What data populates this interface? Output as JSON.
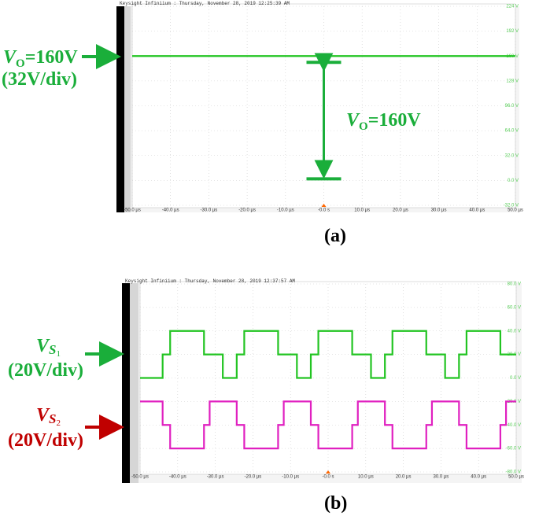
{
  "chart_data": [
    {
      "type": "line",
      "title": "Keysight Infiniium : Thursday, November 28, 2019 12:25:39 AM",
      "panel_label": "(a)",
      "annotations": {
        "left": {
          "v": "V",
          "sub": "O",
          "rest": "=160V",
          "div": "(32V/div)"
        },
        "inner": {
          "v": "V",
          "sub": "O",
          "rest": "=160V"
        }
      },
      "xlim": [
        -50,
        50
      ],
      "xticks": [
        {
          "value": -50,
          "label": "-50.0 µs"
        },
        {
          "value": -40,
          "label": "-40.0 µs"
        },
        {
          "value": -30,
          "label": "-30.0 µs"
        },
        {
          "value": -20,
          "label": "-20.0 µs"
        },
        {
          "value": -10,
          "label": "-10.0 µs"
        },
        {
          "value": 0,
          "label": "-0.0 s"
        },
        {
          "value": 10,
          "label": "10.0 µs"
        },
        {
          "value": 20,
          "label": "20.0 µs"
        },
        {
          "value": 30,
          "label": "30.0 µs"
        },
        {
          "value": 40,
          "label": "40.0 µs"
        },
        {
          "value": 50,
          "label": "50.0 µs"
        }
      ],
      "ylim": [
        -32,
        224
      ],
      "yticks": [
        {
          "value": 224,
          "label": "224 V"
        },
        {
          "value": 192,
          "label": "192 V"
        },
        {
          "value": 160,
          "label": "160 V"
        },
        {
          "value": 128,
          "label": "128 V"
        },
        {
          "value": 96,
          "label": "96.0 V"
        },
        {
          "value": 64,
          "label": "64.0 V"
        },
        {
          "value": 32,
          "label": "32.0 V"
        },
        {
          "value": 0,
          "label": "0.0 V"
        },
        {
          "value": -32,
          "label": "-32.0 V"
        }
      ],
      "grid": true,
      "series": [
        {
          "name": "VO",
          "color": "#22c422",
          "x": [
            -50,
            50
          ],
          "values": [
            160,
            160
          ]
        }
      ]
    },
    {
      "type": "line",
      "title": "Keysight Infiniium : Thursday, November 28, 2019 12:37:57 AM",
      "panel_label": "(b)",
      "annotations": {
        "s1": {
          "v": "V",
          "s": "S",
          "sub": "1",
          "div": "(20V/div)"
        },
        "s2": {
          "v": "V",
          "s": "S",
          "sub": "2",
          "div": "(20V/div)"
        }
      },
      "xlim": [
        -50,
        50
      ],
      "xticks": [
        {
          "value": -50,
          "label": "-50.0 µs"
        },
        {
          "value": -40,
          "label": "-40.0 µs"
        },
        {
          "value": -30,
          "label": "-30.0 µs"
        },
        {
          "value": -20,
          "label": "-20.0 µs"
        },
        {
          "value": -10,
          "label": "-10.0 µs"
        },
        {
          "value": 0,
          "label": "-0.0 s"
        },
        {
          "value": 10,
          "label": "10.0 µs"
        },
        {
          "value": 20,
          "label": "20.0 µs"
        },
        {
          "value": 30,
          "label": "30.0 µs"
        },
        {
          "value": 40,
          "label": "40.0 µs"
        },
        {
          "value": 50,
          "label": "50.0 µs"
        }
      ],
      "ylim": [
        -80,
        80
      ],
      "yticks": [
        {
          "value": 80,
          "label": "80.0 V"
        },
        {
          "value": 60,
          "label": "60.0 V"
        },
        {
          "value": 40,
          "label": "40.0 V"
        },
        {
          "value": 20,
          "label": "20.0 V"
        },
        {
          "value": 0,
          "label": "0.0 V"
        },
        {
          "value": -20,
          "label": "-20.0 V"
        },
        {
          "value": -40,
          "label": "-40.0 V"
        },
        {
          "value": -60,
          "label": "-60.0 V"
        },
        {
          "value": -80,
          "label": "-80.0 V"
        }
      ],
      "grid": true,
      "series": [
        {
          "name": "VS1",
          "color": "#22c422",
          "x": [
            -50,
            -44,
            -42,
            -33,
            -28,
            -24.3,
            -22.3,
            -13.3,
            -8.3,
            -4.6,
            -2.6,
            6.4,
            11.4,
            15.1,
            17.1,
            26.1,
            31.1,
            34.8,
            36.8,
            45.8,
            50
          ],
          "values": [
            0,
            20,
            40,
            20,
            0,
            20,
            40,
            20,
            0,
            20,
            40,
            20,
            0,
            20,
            40,
            20,
            0,
            20,
            40,
            20,
            20
          ]
        },
        {
          "name": "VS2",
          "color": "#e020c0",
          "x": [
            -50,
            -44,
            -42,
            -33,
            -31.5,
            -24.3,
            -22.3,
            -13.3,
            -11.8,
            -4.6,
            -2.6,
            6.4,
            7.9,
            15.1,
            17.1,
            26.1,
            27.6,
            34.8,
            36.8,
            45.8,
            47.3,
            50
          ],
          "values": [
            -20,
            -40,
            -60,
            -40,
            -20,
            -40,
            -60,
            -40,
            -20,
            -40,
            -60,
            -40,
            -20,
            -40,
            -60,
            -40,
            -20,
            -40,
            -60,
            -40,
            -20,
            -20
          ]
        }
      ]
    }
  ]
}
